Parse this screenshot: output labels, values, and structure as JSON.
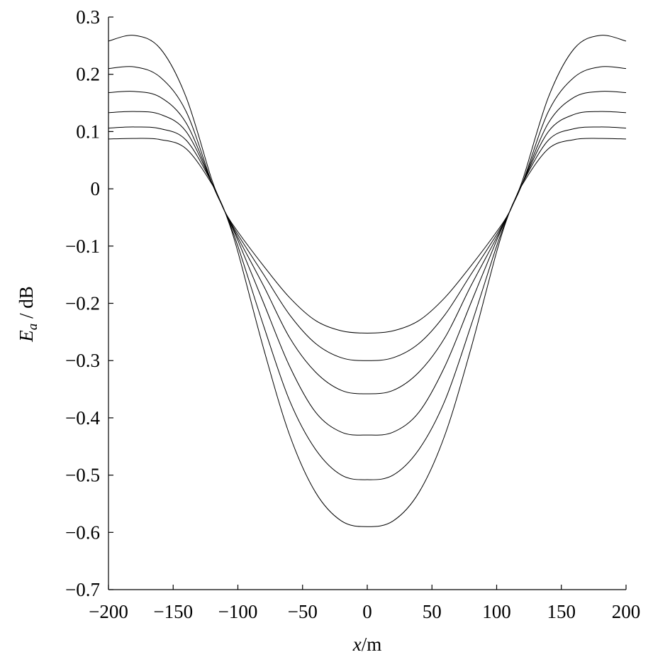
{
  "chart_data": {
    "type": "line",
    "title": "",
    "xlabel": {
      "italic": "x",
      "rest": "/m"
    },
    "ylabel": {
      "italic": "E",
      "sub": "a",
      "rest": " / dB"
    },
    "xlim": [
      -200,
      200
    ],
    "ylim": [
      -0.7,
      0.3
    ],
    "x_ticks": [
      -200,
      -150,
      -100,
      -50,
      0,
      50,
      100,
      150,
      200
    ],
    "x_tick_labels": [
      "−200",
      "−150",
      "−100",
      "−50",
      "0",
      "50",
      "100",
      "150",
      "200"
    ],
    "y_ticks": [
      0.3,
      0.2,
      0.1,
      0,
      -0.1,
      -0.2,
      -0.3,
      -0.4,
      -0.5,
      -0.6,
      -0.7
    ],
    "y_tick_labels": [
      "0.3",
      "0.2",
      "0.1",
      "0",
      "−0.1",
      "−0.2",
      "−0.3",
      "−0.4",
      "−0.5",
      "−0.6",
      "−0.7"
    ],
    "grid": false,
    "legend": "none",
    "x": [
      -200,
      -180,
      -160,
      -140,
      -120,
      -110,
      -100,
      -80,
      -60,
      -40,
      -20,
      0,
      20,
      40,
      60,
      80,
      100,
      110,
      120,
      140,
      160,
      180,
      200
    ],
    "series": [
      {
        "values": [
          0.258,
          0.268,
          0.245,
          0.16,
          0.015,
          -0.04,
          -0.11,
          -0.28,
          -0.43,
          -0.53,
          -0.58,
          -0.59,
          -0.58,
          -0.53,
          -0.43,
          -0.28,
          -0.11,
          -0.04,
          0.015,
          0.16,
          0.245,
          0.268,
          0.258
        ]
      },
      {
        "values": [
          0.21,
          0.213,
          0.195,
          0.135,
          0.01,
          -0.04,
          -0.1,
          -0.24,
          -0.37,
          -0.455,
          -0.5,
          -0.508,
          -0.5,
          -0.455,
          -0.37,
          -0.24,
          -0.1,
          -0.04,
          0.01,
          0.135,
          0.195,
          0.213,
          0.21
        ]
      },
      {
        "values": [
          0.168,
          0.17,
          0.16,
          0.115,
          0.01,
          -0.04,
          -0.09,
          -0.2,
          -0.31,
          -0.39,
          -0.425,
          -0.43,
          -0.425,
          -0.39,
          -0.31,
          -0.2,
          -0.09,
          -0.04,
          0.01,
          0.115,
          0.16,
          0.17,
          0.168
        ]
      },
      {
        "values": [
          0.133,
          0.135,
          0.13,
          0.1,
          0.01,
          -0.04,
          -0.085,
          -0.17,
          -0.26,
          -0.32,
          -0.352,
          -0.358,
          -0.352,
          -0.32,
          -0.26,
          -0.17,
          -0.085,
          -0.04,
          0.01,
          0.1,
          0.13,
          0.135,
          0.133
        ]
      },
      {
        "values": [
          0.106,
          0.108,
          0.105,
          0.085,
          0.01,
          -0.04,
          -0.08,
          -0.15,
          -0.22,
          -0.27,
          -0.295,
          -0.3,
          -0.295,
          -0.27,
          -0.22,
          -0.15,
          -0.08,
          -0.04,
          0.01,
          0.085,
          0.105,
          0.108,
          0.106
        ]
      },
      {
        "values": [
          0.087,
          0.088,
          0.086,
          0.07,
          0.008,
          -0.04,
          -0.075,
          -0.135,
          -0.19,
          -0.23,
          -0.248,
          -0.252,
          -0.248,
          -0.23,
          -0.19,
          -0.135,
          -0.075,
          -0.04,
          0.008,
          0.07,
          0.086,
          0.088,
          0.087
        ]
      }
    ]
  }
}
